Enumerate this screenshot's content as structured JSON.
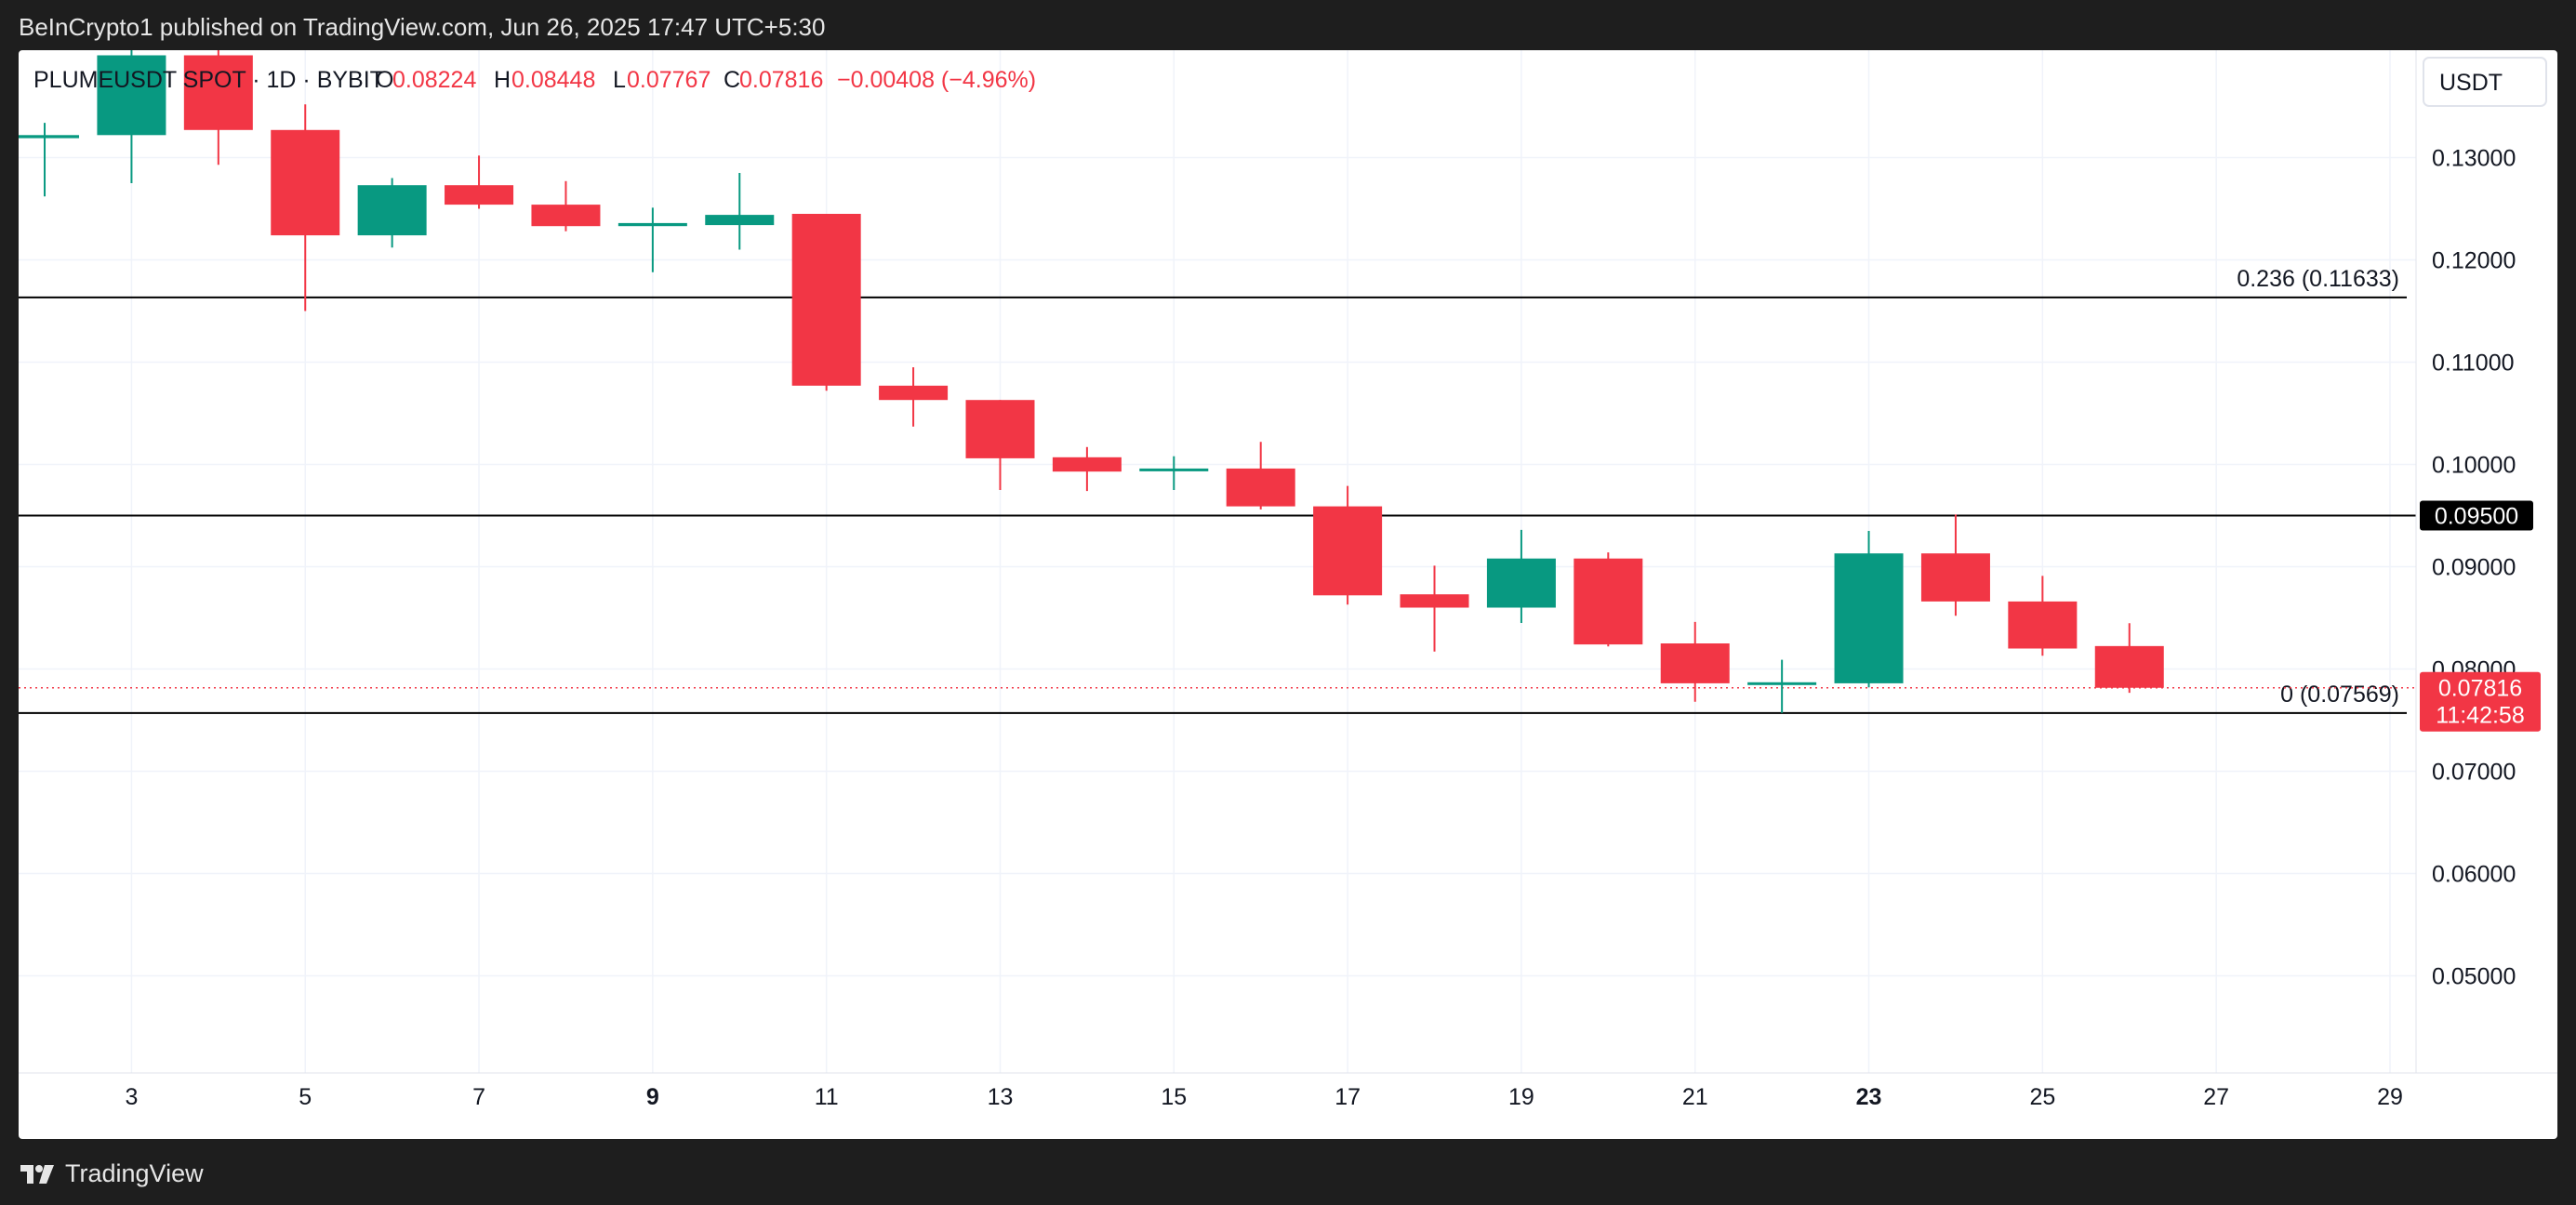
{
  "header": {
    "caption": "BeInCrypto1 published on TradingView.com, Jun 26, 2025 17:47 UTC+5:30"
  },
  "footer": {
    "logo_text": "TradingView",
    "logo_icon": "tradingview-logo-icon"
  },
  "symbol": {
    "name": "PLUMEUSDT SPOT · 1D · BYBIT",
    "o_label": "O",
    "o_value": "0.08224",
    "h_label": "H",
    "h_value": "0.08448",
    "l_label": "L",
    "l_value": "0.07767",
    "c_label": "C",
    "c_value": "0.07816",
    "change": "−0.00408 (−4.96%)"
  },
  "currency_button": "USDT",
  "price_badge": {
    "value": "0.07816",
    "countdown": "11:42:58"
  },
  "level_badge": "0.09500",
  "fib_levels": [
    {
      "label": "0.236 (0.11633)",
      "price": 0.11633
    },
    {
      "label": "0 (0.07569)",
      "price": 0.07569
    }
  ],
  "horizontal_level": 0.095,
  "colors": {
    "up": "#089981",
    "down": "#f23645",
    "level": "#000000",
    "grid": "#f0f3fa"
  },
  "chart_data": {
    "type": "candlestick",
    "symbol": "PLUMEUSDT SPOT · 1D · BYBIT",
    "x_ticks": [
      {
        "day": 3,
        "label": "3",
        "bold": false
      },
      {
        "day": 5,
        "label": "5",
        "bold": false
      },
      {
        "day": 7,
        "label": "7",
        "bold": false
      },
      {
        "day": 9,
        "label": "9",
        "bold": true
      },
      {
        "day": 11,
        "label": "11",
        "bold": false
      },
      {
        "day": 13,
        "label": "13",
        "bold": false
      },
      {
        "day": 15,
        "label": "15",
        "bold": false
      },
      {
        "day": 17,
        "label": "17",
        "bold": false
      },
      {
        "day": 19,
        "label": "19",
        "bold": false
      },
      {
        "day": 21,
        "label": "21",
        "bold": false
      },
      {
        "day": 23,
        "label": "23",
        "bold": true
      },
      {
        "day": 25,
        "label": "25",
        "bold": false
      },
      {
        "day": 27,
        "label": "27",
        "bold": false
      },
      {
        "day": 29,
        "label": "29",
        "bold": false
      }
    ],
    "y_ticks": [
      {
        "value": 0.13,
        "label": "0.13000"
      },
      {
        "value": 0.12,
        "label": "0.12000"
      },
      {
        "value": 0.11,
        "label": "0.11000"
      },
      {
        "value": 0.1,
        "label": "0.10000"
      },
      {
        "value": 0.09,
        "label": "0.09000"
      },
      {
        "value": 0.08,
        "label": "0.08000"
      },
      {
        "value": 0.07,
        "label": "0.07000"
      },
      {
        "value": 0.06,
        "label": "0.06000"
      },
      {
        "value": 0.05,
        "label": "0.05000"
      }
    ],
    "ylim": [
      0.0405,
      0.1405
    ],
    "xlim": [
      1.7,
      29.3
    ],
    "candles": [
      {
        "day": 2,
        "open": 0.1319,
        "high": 0.1334,
        "low": 0.1262,
        "close": 0.1322
      },
      {
        "day": 3,
        "open": 0.1322,
        "high": 0.142,
        "low": 0.1275,
        "close": 0.14
      },
      {
        "day": 4,
        "open": 0.14,
        "high": 0.1405,
        "low": 0.1293,
        "close": 0.1327
      },
      {
        "day": 5,
        "open": 0.1327,
        "high": 0.1352,
        "low": 0.115,
        "close": 0.1224
      },
      {
        "day": 6,
        "open": 0.1224,
        "high": 0.128,
        "low": 0.1212,
        "close": 0.1273
      },
      {
        "day": 7,
        "open": 0.1273,
        "high": 0.1302,
        "low": 0.125,
        "close": 0.1254
      },
      {
        "day": 8,
        "open": 0.1254,
        "high": 0.1277,
        "low": 0.1228,
        "close": 0.1233
      },
      {
        "day": 9,
        "open": 0.1233,
        "high": 0.1251,
        "low": 0.1188,
        "close": 0.1236
      },
      {
        "day": 10,
        "open": 0.1234,
        "high": 0.1285,
        "low": 0.121,
        "close": 0.1244
      },
      {
        "day": 11,
        "open": 0.1245,
        "high": 0.1245,
        "low": 0.1072,
        "close": 0.1077
      },
      {
        "day": 12,
        "open": 0.1077,
        "high": 0.1095,
        "low": 0.1037,
        "close": 0.1063
      },
      {
        "day": 13,
        "open": 0.1063,
        "high": 0.1063,
        "low": 0.0975,
        "close": 0.1006
      },
      {
        "day": 14,
        "open": 0.1007,
        "high": 0.1017,
        "low": 0.0974,
        "close": 0.0993
      },
      {
        "day": 15,
        "open": 0.0994,
        "high": 0.1008,
        "low": 0.0975,
        "close": 0.0996
      },
      {
        "day": 16,
        "open": 0.0996,
        "high": 0.1022,
        "low": 0.0956,
        "close": 0.0959
      },
      {
        "day": 17,
        "open": 0.0959,
        "high": 0.0979,
        "low": 0.0863,
        "close": 0.0872
      },
      {
        "day": 18,
        "open": 0.0873,
        "high": 0.0901,
        "low": 0.0817,
        "close": 0.086
      },
      {
        "day": 19,
        "open": 0.086,
        "high": 0.0936,
        "low": 0.0845,
        "close": 0.0908
      },
      {
        "day": 20,
        "open": 0.0908,
        "high": 0.0914,
        "low": 0.0822,
        "close": 0.0824
      },
      {
        "day": 21,
        "open": 0.0825,
        "high": 0.0846,
        "low": 0.0768,
        "close": 0.0786
      },
      {
        "day": 22,
        "open": 0.0786,
        "high": 0.0809,
        "low": 0.0757,
        "close": 0.0787
      },
      {
        "day": 23,
        "open": 0.0786,
        "high": 0.0935,
        "low": 0.0782,
        "close": 0.0913
      },
      {
        "day": 24,
        "open": 0.0913,
        "high": 0.0951,
        "low": 0.0852,
        "close": 0.0866
      },
      {
        "day": 25,
        "open": 0.0866,
        "high": 0.0891,
        "low": 0.0813,
        "close": 0.082
      },
      {
        "day": 26,
        "open": 0.08224,
        "high": 0.08448,
        "low": 0.07767,
        "close": 0.07816
      }
    ],
    "last_price": 0.07816
  }
}
